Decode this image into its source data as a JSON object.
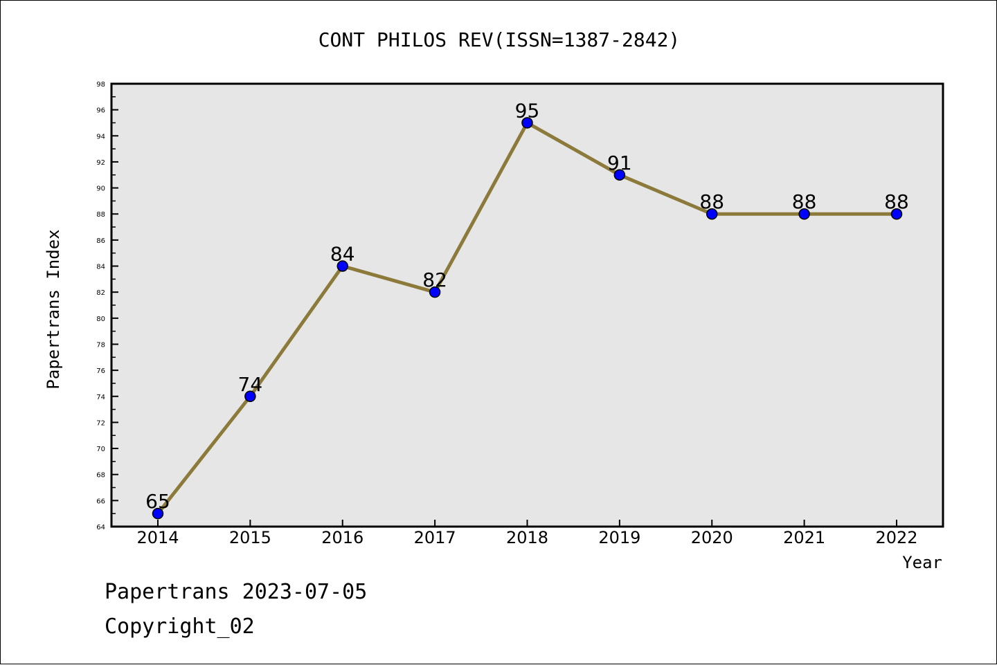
{
  "chart_data": {
    "type": "line",
    "title": "CONT PHILOS REV(ISSN=1387-2842)",
    "xlabel": "Year",
    "ylabel": "Papertrans Index",
    "categories": [
      "2014",
      "2015",
      "2016",
      "2017",
      "2018",
      "2019",
      "2020",
      "2021",
      "2022"
    ],
    "series": [
      {
        "values": [
          65,
          74,
          84,
          82,
          95,
          91,
          88,
          88,
          88
        ]
      }
    ],
    "ylim": [
      64,
      98
    ],
    "y_ticks": [
      "64",
      "66",
      "68",
      "70",
      "72",
      "74",
      "76",
      "78",
      "80",
      "82",
      "84",
      "86",
      "88",
      "90",
      "92",
      "94",
      "96",
      "98"
    ],
    "data_labels": [
      "65",
      "74",
      "84",
      "82",
      "95",
      "91",
      "88",
      "88",
      "88"
    ],
    "colors": {
      "plot_background": "#e6e6e6",
      "line": "#8b7a3a",
      "marker": "#0000ff",
      "axes": "#000000"
    },
    "grid": false,
    "legend": "none"
  },
  "footer": {
    "line1": "Papertrans 2023-07-05",
    "line2": "Copyright_02"
  }
}
